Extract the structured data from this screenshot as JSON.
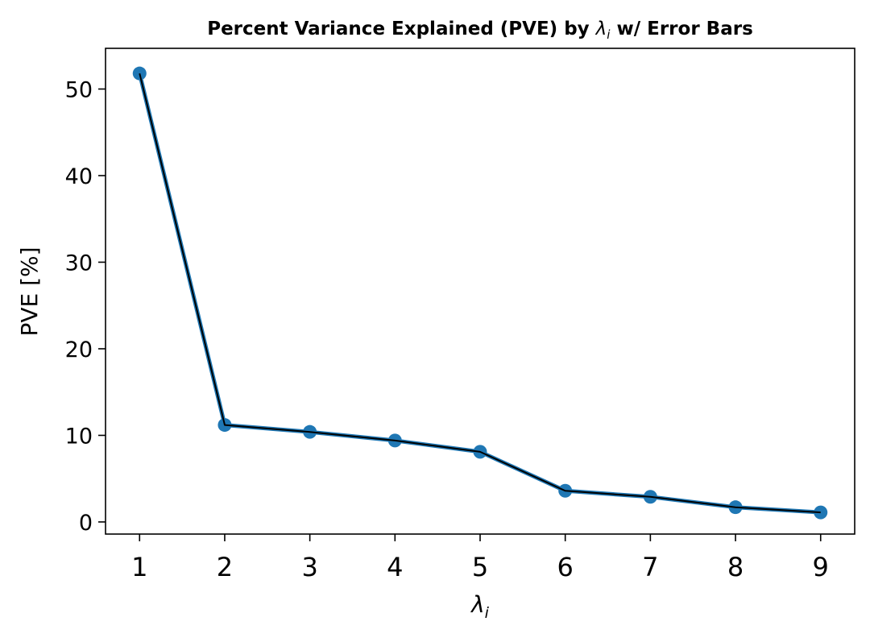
{
  "chart_data": {
    "type": "line",
    "title_prefix": "Percent Variance Explained (PVE) by ",
    "title_symbol": "λ",
    "title_subscript": "i",
    "title_suffix": " w/ Error Bars",
    "xlabel_symbol": "λ",
    "xlabel_subscript": "i",
    "ylabel": "PVE [%]",
    "x": [
      1,
      2,
      3,
      4,
      5,
      6,
      7,
      8,
      9
    ],
    "y": [
      51.8,
      11.2,
      10.4,
      9.4,
      8.1,
      3.6,
      2.9,
      1.7,
      1.1
    ],
    "xticks": [
      "1",
      "2",
      "3",
      "4",
      "5",
      "6",
      "7",
      "8",
      "9"
    ],
    "yticks": [
      0,
      10,
      20,
      30,
      40,
      50
    ],
    "xlim": [
      0.6,
      9.4
    ],
    "ylim": [
      -1.4,
      54.7
    ],
    "grid": false,
    "marker_color": "#1f77b4",
    "line_color": "#000000"
  }
}
